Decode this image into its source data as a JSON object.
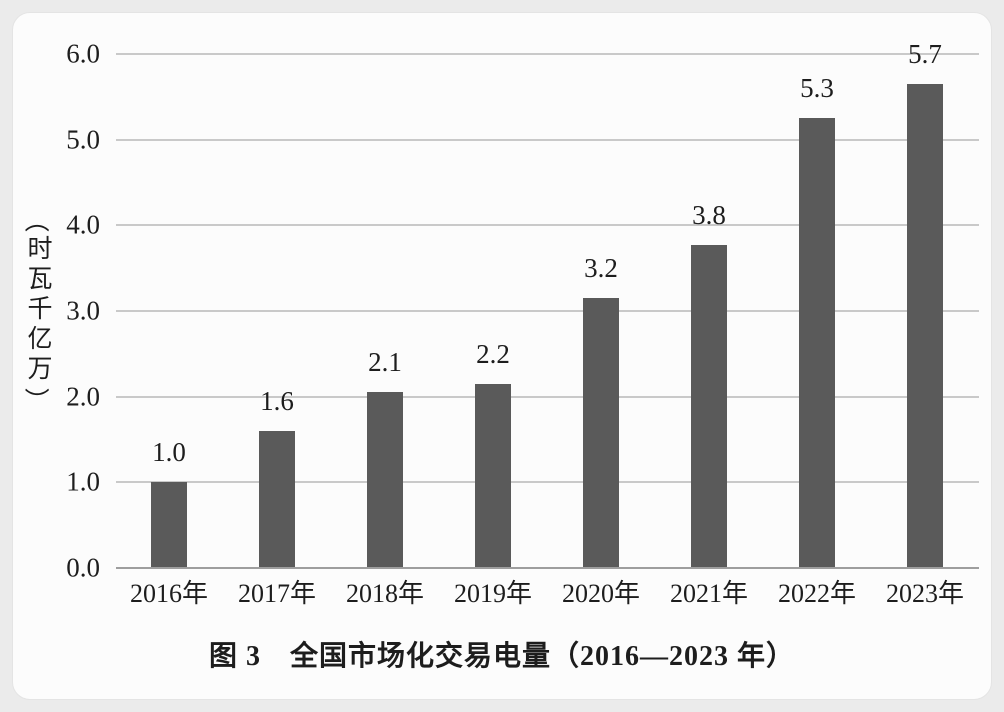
{
  "chart_data": {
    "type": "bar",
    "title": "图 3　全国市场化交易电量（2016—2023 年）",
    "categories": [
      "2016年",
      "2017年",
      "2018年",
      "2019年",
      "2020年",
      "2021年",
      "2022年",
      "2023年"
    ],
    "values": [
      1.0,
      1.6,
      2.1,
      2.2,
      3.2,
      3.8,
      5.3,
      5.7
    ],
    "value_labels": [
      "1.0",
      "1.6",
      "2.1",
      "2.2",
      "3.2",
      "3.8",
      "5.3",
      "5.7"
    ],
    "bar_rendered_values": [
      1.0,
      1.6,
      2.05,
      2.15,
      3.15,
      3.77,
      5.25,
      5.65
    ],
    "xlabel": "",
    "ylabel": "（万亿千瓦时）",
    "y_ticks": [
      "0.0",
      "1.0",
      "2.0",
      "3.0",
      "4.0",
      "5.0",
      "6.0"
    ],
    "ylim": [
      0,
      6
    ],
    "grid": true,
    "legend": "none",
    "colors": {
      "bar": "#5a5a5a",
      "gridline": "#c9c9c9",
      "axis_line": "#9e9e9e",
      "text": "#1d1d1d",
      "card_background": "#fcfcfc",
      "page_background": "#ebebeb"
    }
  }
}
